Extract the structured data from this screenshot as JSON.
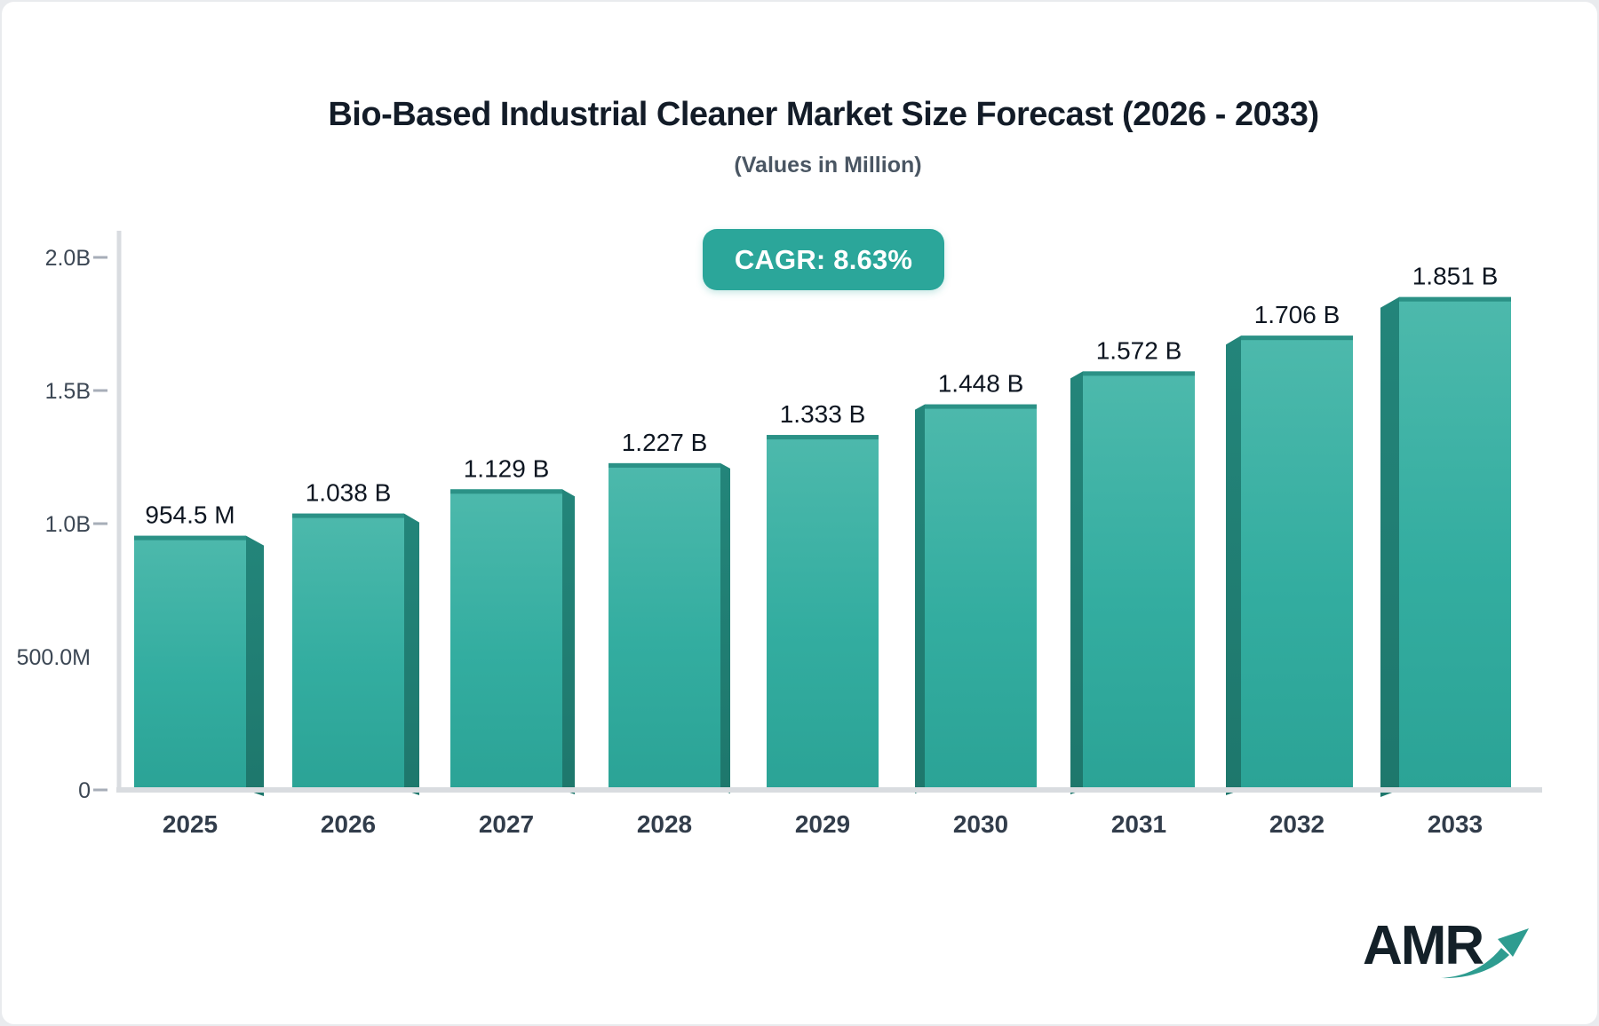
{
  "header": {
    "title": "Bio-Based Industrial Cleaner Market Size Forecast (2026 - 2033)",
    "subtitle": "(Values in Million)",
    "cagr_label": "CAGR: 8.63%"
  },
  "footer": {
    "logo_text": "AMR"
  },
  "chart_data": {
    "type": "bar",
    "title": "Bio-Based Industrial Cleaner Market Size Forecast (2026 - 2033)",
    "subtitle": "(Values in Million)",
    "cagr": "8.63%",
    "categories": [
      "2025",
      "2026",
      "2027",
      "2028",
      "2029",
      "2030",
      "2031",
      "2032",
      "2033"
    ],
    "values_millions": [
      954.5,
      1038,
      1129,
      1227,
      1333,
      1448,
      1572,
      1706,
      1851
    ],
    "bar_labels": [
      "954.5 M",
      "1.038 B",
      "1.129 B",
      "1.227 B",
      "1.333 B",
      "1.448 B",
      "1.572 B",
      "1.706 B",
      "1.851 B"
    ],
    "y_ticks": [
      {
        "label": "2.0B",
        "value_millions": 2000,
        "dash": true
      },
      {
        "label": "1.5B",
        "value_millions": 1500,
        "dash": true
      },
      {
        "label": "1.0B",
        "value_millions": 1000,
        "dash": true
      },
      {
        "label": "500.0M",
        "value_millions": 500,
        "dash": false
      },
      {
        "label": "0",
        "value_millions": 0,
        "dash": true
      }
    ],
    "ylim_millions": [
      0,
      2000
    ],
    "grid": false,
    "legend": "none",
    "colors": {
      "bar_front_top": "#4DB9AC",
      "bar_front_mid": "#33ADA0",
      "bar_front_bottom": "#2BA396",
      "bar_top_edge": "#2B9186",
      "bar_side": "#1F7D71",
      "badge_bg": "#2BA69A",
      "axis_line": "#D9DCE0",
      "tick_dash": "#A7AEB8",
      "y_label_text": "#3C4754",
      "x_label_text": "#323D4B",
      "value_text": "#0E1621",
      "title_text": "#131C28",
      "subtitle_text": "#4A5663",
      "logo_text": "#132028",
      "logo_arrow": "#2E9C90"
    }
  }
}
